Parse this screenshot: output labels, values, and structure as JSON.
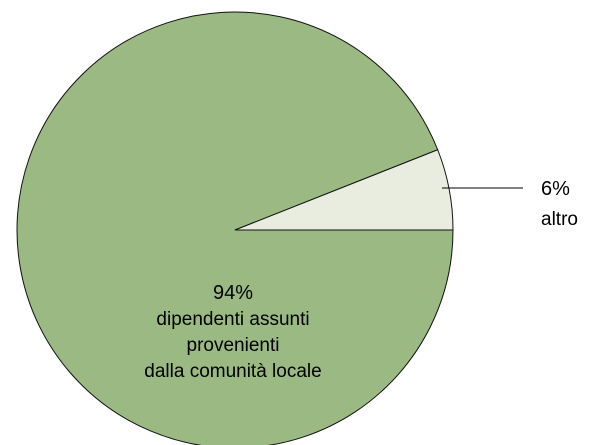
{
  "chart_data": {
    "type": "pie",
    "slices": [
      {
        "value": 94,
        "percent_label": "94%",
        "label_lines": [
          "dipendenti assunti",
          "provenienti",
          "dalla comunità locale"
        ],
        "color": "#9ab983"
      },
      {
        "value": 6,
        "percent_label": "6%",
        "label_lines": [
          "altro"
        ],
        "color": "#e8ede0"
      }
    ],
    "start_angle_deg": 0,
    "direction": "counterclockwise",
    "legend": "none",
    "outline_color": "#111111"
  }
}
